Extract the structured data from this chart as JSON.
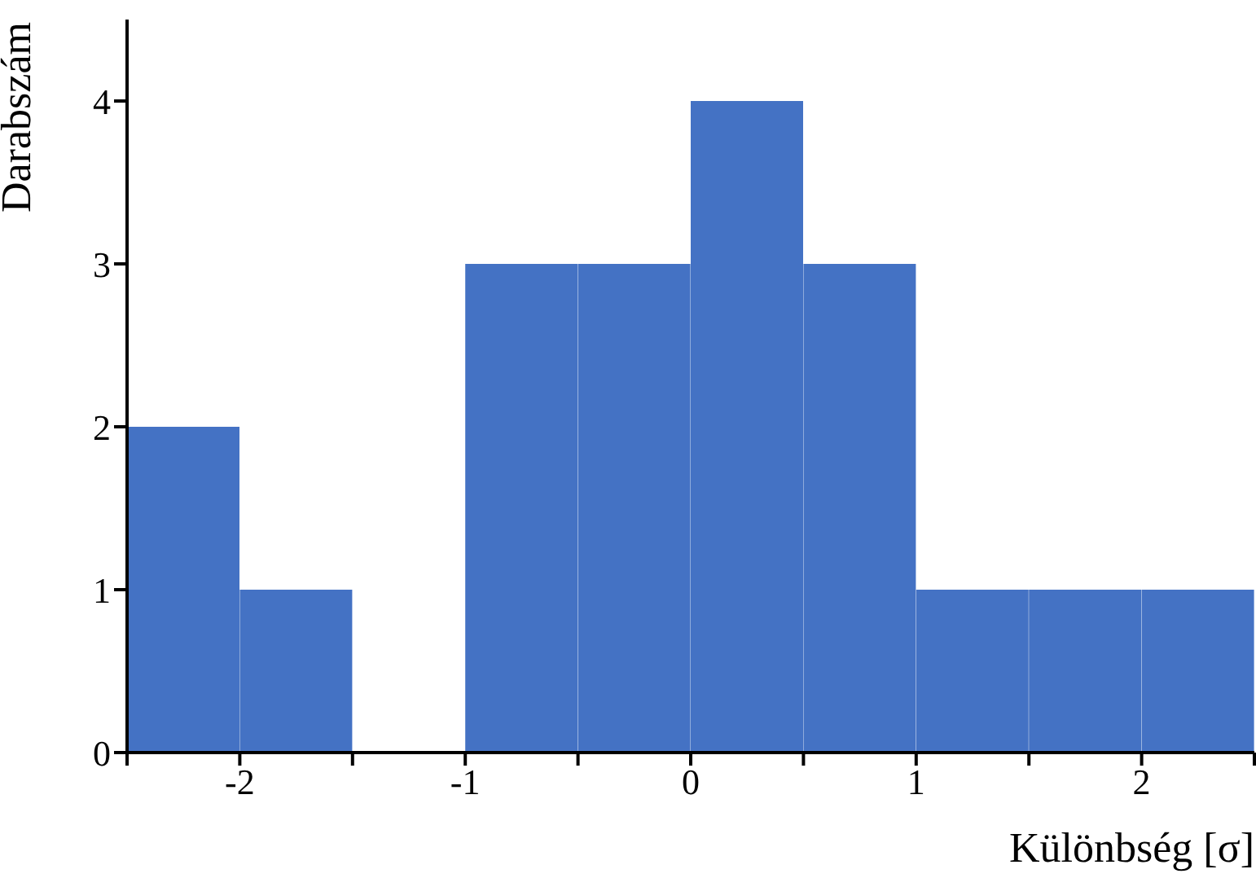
{
  "chart_data": {
    "type": "histogram",
    "xlabel": "Különbség [σ]",
    "ylabel": "Darabszám",
    "bins": [
      -2.5,
      -2,
      -1.5,
      -1,
      -0.5,
      0,
      0.5,
      1,
      1.5,
      2,
      2.5
    ],
    "values": [
      2,
      1,
      0,
      3,
      3,
      4,
      3,
      1,
      1,
      1
    ],
    "color": "#4472c4",
    "xlim": [
      -2.5,
      2.5
    ],
    "xticks": [
      {
        "value": -2.5,
        "label": null
      },
      -2,
      {
        "value": -1.5,
        "label": null
      },
      -1,
      {
        "value": -0.5,
        "label": null
      },
      0,
      {
        "value": 0.5,
        "label": null
      },
      1,
      {
        "value": 1.5,
        "label": null
      },
      2,
      {
        "value": 2.5,
        "label": null
      }
    ],
    "ylim": [
      0,
      4.5
    ],
    "yticks": [
      0,
      1,
      2,
      3,
      4
    ],
    "grid": false
  }
}
